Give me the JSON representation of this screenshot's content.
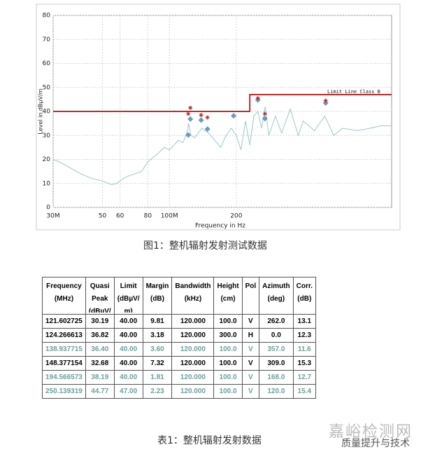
{
  "chart_data": {
    "type": "line",
    "xscale": "log",
    "grid": true,
    "xlabel": "Frequency in Hz",
    "ylabel": "Level in dBµV/m",
    "xlim": [
      30,
      1000
    ],
    "ylim": [
      0,
      80
    ],
    "xticks": [
      {
        "value": 30,
        "label": "30M"
      },
      50,
      60,
      80,
      {
        "value": 100,
        "label": "100M"
      },
      200
    ],
    "yticks": [
      0,
      10,
      20,
      30,
      40,
      50,
      60,
      70,
      80
    ],
    "annotation": "Limit Line Class B",
    "series": [
      {
        "style": "trace",
        "color": "#9cc7c9",
        "x": [
          30,
          32,
          35,
          40,
          45,
          50,
          55,
          58,
          62,
          65,
          70,
          75,
          80,
          85,
          90,
          95,
          100,
          105,
          110,
          115,
          120,
          122,
          125,
          130,
          140,
          150,
          160,
          170,
          180,
          190,
          200,
          210,
          220,
          230,
          240,
          250,
          260,
          270,
          280,
          300,
          320,
          350,
          380,
          400,
          450,
          500,
          550,
          600,
          700,
          800,
          900,
          1000
        ],
        "values": [
          20,
          19,
          17,
          14,
          12,
          11,
          9.5,
          10,
          12,
          13,
          14,
          15,
          19,
          21,
          23,
          25,
          24,
          26,
          28,
          27,
          31,
          35,
          30,
          29,
          33,
          31,
          28,
          25,
          30,
          33,
          30,
          24,
          36,
          26,
          38,
          40,
          33,
          42,
          30,
          38,
          31,
          41,
          30,
          36,
          32,
          38,
          30,
          33,
          32,
          33,
          34,
          34
        ]
      },
      {
        "style": "limit",
        "color": "#c0282d",
        "x": [
          30,
          230,
          230,
          1000
        ],
        "values": [
          40,
          40,
          47,
          47
        ]
      },
      {
        "style": "diamond",
        "color": "#6a9ab5",
        "x": [
          121.6,
          124.27,
          138.94,
          148.38,
          194.57,
          250.14,
          269,
          505
        ],
        "values": [
          30.19,
          36.82,
          36.4,
          32.68,
          38.19,
          44.77,
          37,
          43.5
        ]
      },
      {
        "style": "star",
        "color": "#c0282d",
        "x": [
          121.6,
          124.27,
          138.94,
          148.38,
          250.14,
          269,
          505
        ],
        "values": [
          39,
          41.5,
          38.5,
          37.5,
          45.5,
          39,
          44.5
        ]
      }
    ]
  },
  "captions": {
    "figure": "图1：整机辐射发射测试数据",
    "table": "表1：整机辐射发射数据"
  },
  "table": {
    "header": [
      [
        "Frequency",
        "(MHz)"
      ],
      [
        "Quasi",
        "Peak",
        "(dBµV/"
      ],
      [
        "Limit",
        "(dBµV/",
        "m)"
      ],
      [
        "Margin",
        "(dB)"
      ],
      [
        "Bandwidth",
        "(kHz)"
      ],
      [
        "Height",
        "(cm)"
      ],
      [
        "Pol"
      ],
      [
        "Azimuth",
        "(deg)"
      ],
      [
        "Corr.",
        "(dB)"
      ]
    ],
    "rows": [
      {
        "color": "#000000",
        "cells": [
          "121.602725",
          "30.19",
          "40.00",
          "9.81",
          "120.000",
          "100.0",
          "V",
          "262.0",
          "13.1"
        ]
      },
      {
        "color": "#000000",
        "cells": [
          "124.266613",
          "36.82",
          "40.00",
          "3.18",
          "120.000",
          "300.0",
          "H",
          "0.0",
          "12.3"
        ]
      },
      {
        "color": "#6f9e9c",
        "cells": [
          "138.937715",
          "36.40",
          "40.00",
          "3.60",
          "120.000",
          "100.0",
          "V",
          "357.0",
          "11.6"
        ]
      },
      {
        "color": "#000000",
        "cells": [
          "148.377154",
          "32.68",
          "40.00",
          "7.32",
          "120.000",
          "100.0",
          "V",
          "309.0",
          "15.3"
        ]
      },
      {
        "color": "#6f9e9c",
        "cells": [
          "194.566573",
          "38.19",
          "40.00",
          "1.81",
          "120.000",
          "100.0",
          "V",
          "168.0",
          "12.7"
        ]
      },
      {
        "color": "#6f9e9c",
        "cells": [
          "250.139319",
          "44.77",
          "47.00",
          "2.23",
          "120.000",
          "100.0",
          "V",
          "120.0",
          "15.4"
        ]
      }
    ]
  },
  "watermark": {
    "main": "嘉峪检测网",
    "sub": "质量提升与技术"
  }
}
